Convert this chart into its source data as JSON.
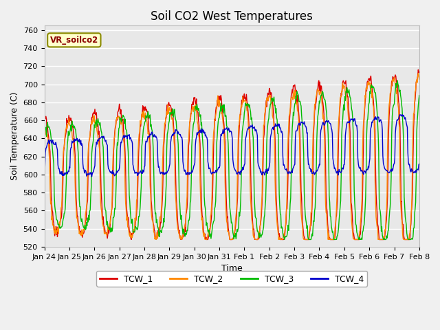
{
  "title": "Soil CO2 West Temperatures",
  "xlabel": "Time",
  "ylabel": "Soil Temperature (C)",
  "ylim": [
    520,
    765
  ],
  "xlim": [
    0,
    360
  ],
  "annotation": "VR_soilco2",
  "fig_bg_color": "#f0f0f0",
  "plot_bg_color": "#e8e8e8",
  "series_colors": [
    "#dd0000",
    "#ff8800",
    "#00bb00",
    "#0000cc"
  ],
  "series_labels": [
    "TCW_1",
    "TCW_2",
    "TCW_3",
    "TCW_4"
  ],
  "xtick_labels": [
    "Jan 24",
    "Jan 25",
    "Jan 26",
    "Jan 27",
    "Jan 28",
    "Jan 29",
    "Jan 30",
    "Jan 31",
    "Feb 1",
    "Feb 2",
    "Feb 3",
    "Feb 4",
    "Feb 5",
    "Feb 6",
    "Feb 7",
    "Feb 8"
  ],
  "xtick_positions": [
    0,
    24,
    48,
    72,
    96,
    120,
    144,
    168,
    192,
    216,
    240,
    264,
    288,
    312,
    336,
    360
  ],
  "ytick_values": [
    520,
    540,
    560,
    580,
    600,
    620,
    640,
    660,
    680,
    700,
    720,
    740,
    760
  ]
}
